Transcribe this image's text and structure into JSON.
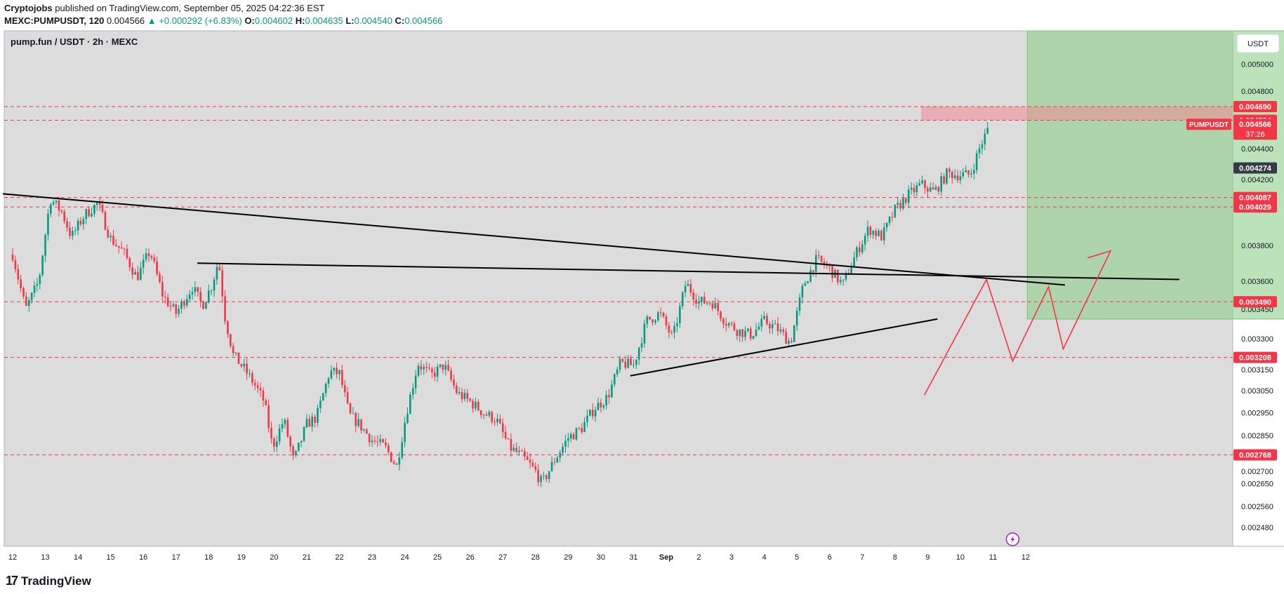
{
  "header": {
    "author": "Cryptojobs",
    "published": "published on TradingView.com, September 05, 2025 04:22:36 EST",
    "symbol_line": "MEXC:PUMPUSDT, 120",
    "last": "0.004566",
    "change": "▲ +0.000292 (+6.83%)",
    "o_label": "O:",
    "o": "0.004602",
    "h_label": "H:",
    "h": "0.004635",
    "l_label": "L:",
    "l": "0.004540",
    "c_label": "C:",
    "c": "0.004566"
  },
  "footer": {
    "brand": "TradingView",
    "logo_text": "17"
  },
  "chart_data": {
    "type": "candlestick",
    "title": "pump.fun / USDT · 2h · MEXC",
    "currency_button": "USDT",
    "price_tag_label": "PUMPUSDT",
    "countdown": "37:26",
    "y_scale": "log",
    "ylim": [
      0.00241,
      0.00526
    ],
    "x_labels": [
      "12",
      "13",
      "14",
      "15",
      "16",
      "17",
      "18",
      "19",
      "20",
      "21",
      "22",
      "23",
      "24",
      "25",
      "26",
      "27",
      "28",
      "29",
      "30",
      "31",
      "Sep",
      "2",
      "3",
      "4",
      "5",
      "6",
      "7",
      "8",
      "9",
      "10",
      "11",
      "12"
    ],
    "axis_ticks": [
      "0.005000",
      "0.004800",
      "0.004400",
      "0.004200",
      "0.003800",
      "0.003600",
      "0.003450",
      "0.003300",
      "0.003150",
      "0.003050",
      "0.002950",
      "0.002850",
      "0.002700",
      "0.002650",
      "0.002560",
      "0.002480"
    ],
    "horizontal_levels": [
      {
        "label": "0.004690",
        "value": 0.00469
      },
      {
        "label": "0.004594",
        "value": 0.004594
      },
      {
        "label": "0.004087",
        "value": 0.004087
      },
      {
        "label": "0.004029",
        "value": 0.004029
      },
      {
        "label": "0.003490",
        "value": 0.00349
      },
      {
        "label": "0.003208",
        "value": 0.003208
      },
      {
        "label": "0.002768",
        "value": 0.002768
      }
    ],
    "last_price": {
      "label": "0.004566",
      "value": 0.004566
    },
    "crosshair_price": {
      "label": "0.004274",
      "value": 0.004274
    },
    "resistance_zone": {
      "from_day": 27.8,
      "to_day": 33.4,
      "low": 0.004594,
      "high": 0.00469
    },
    "target_zone": {
      "from_day": 31.05,
      "to_day": 39.45,
      "low": 0.0034,
      "high": 0.00526
    },
    "trendlines": [
      {
        "from": [
          -0.3,
          0.00411
        ],
        "to": [
          32.2,
          0.00358
        ]
      },
      {
        "from": [
          5.65,
          0.0037
        ],
        "to": [
          35.7,
          0.00361
        ]
      },
      {
        "from": [
          18.9,
          0.00312
        ],
        "to": [
          28.3,
          0.0034
        ]
      }
    ],
    "zigzag": [
      [
        27.9,
        0.00303
      ],
      [
        29.8,
        0.00361
      ],
      [
        30.6,
        0.00319
      ],
      [
        31.7,
        0.00357
      ],
      [
        32.15,
        0.00325
      ],
      [
        33.6,
        0.00377
      ],
      [
        32.9,
        0.00373
      ]
    ],
    "series_path": [
      [
        0,
        0.00375
      ],
      [
        0.4,
        0.00345
      ],
      [
        0.8,
        0.0036
      ],
      [
        1.15,
        0.00408
      ],
      [
        1.5,
        0.004
      ],
      [
        1.8,
        0.00385
      ],
      [
        2.2,
        0.00398
      ],
      [
        2.6,
        0.00405
      ],
      [
        3,
        0.00384
      ],
      [
        3.4,
        0.00376
      ],
      [
        3.8,
        0.00362
      ],
      [
        4.2,
        0.00377
      ],
      [
        4.6,
        0.00352
      ],
      [
        5,
        0.00343
      ],
      [
        5.5,
        0.00357
      ],
      [
        5.8,
        0.00347
      ],
      [
        6.1,
        0.00358
      ],
      [
        6.3,
        0.00372
      ],
      [
        6.5,
        0.00341
      ],
      [
        6.75,
        0.00322
      ],
      [
        7.1,
        0.00315
      ],
      [
        7.4,
        0.00308
      ],
      [
        7.7,
        0.003
      ],
      [
        7.95,
        0.0028
      ],
      [
        8.3,
        0.00292
      ],
      [
        8.6,
        0.00274
      ],
      [
        9,
        0.0029
      ],
      [
        9.3,
        0.00293
      ],
      [
        9.7,
        0.00314
      ],
      [
        10,
        0.00313
      ],
      [
        10.3,
        0.00294
      ],
      [
        10.6,
        0.0029
      ],
      [
        11,
        0.00283
      ],
      [
        11.4,
        0.0028
      ],
      [
        11.75,
        0.00272
      ],
      [
        12.05,
        0.00295
      ],
      [
        12.4,
        0.00318
      ],
      [
        12.8,
        0.00312
      ],
      [
        13.2,
        0.00317
      ],
      [
        13.6,
        0.00304
      ],
      [
        14,
        0.003
      ],
      [
        14.4,
        0.00295
      ],
      [
        14.8,
        0.00292
      ],
      [
        15.2,
        0.0028
      ],
      [
        15.6,
        0.00276
      ],
      [
        16,
        0.0027
      ],
      [
        16.2,
        0.00265
      ],
      [
        16.6,
        0.00275
      ],
      [
        17,
        0.00284
      ],
      [
        17.4,
        0.00288
      ],
      [
        17.8,
        0.00297
      ],
      [
        18.2,
        0.00302
      ],
      [
        18.6,
        0.00318
      ],
      [
        19,
        0.00317
      ],
      [
        19.4,
        0.00339
      ],
      [
        19.8,
        0.00343
      ],
      [
        20.2,
        0.0033
      ],
      [
        20.6,
        0.00359
      ],
      [
        21,
        0.00349
      ],
      [
        21.4,
        0.00349
      ],
      [
        21.8,
        0.00339
      ],
      [
        22.2,
        0.00334
      ],
      [
        22.6,
        0.00332
      ],
      [
        23,
        0.00339
      ],
      [
        23.4,
        0.00335
      ],
      [
        23.8,
        0.00328
      ],
      [
        24.2,
        0.00358
      ],
      [
        24.6,
        0.00372
      ],
      [
        25,
        0.00367
      ],
      [
        25.4,
        0.00358
      ],
      [
        25.8,
        0.00375
      ],
      [
        26.2,
        0.0039
      ],
      [
        26.6,
        0.00385
      ],
      [
        27,
        0.00401
      ],
      [
        27.4,
        0.0041
      ],
      [
        27.8,
        0.00417
      ],
      [
        28.2,
        0.00412
      ],
      [
        28.6,
        0.00424
      ],
      [
        28.9,
        0.00423
      ],
      [
        29.3,
        0.00423
      ],
      [
        29.6,
        0.00441
      ],
      [
        29.9,
        0.00456
      ]
    ],
    "markers": [
      {
        "icon": "lightning-icon",
        "day": 30.6
      }
    ]
  }
}
